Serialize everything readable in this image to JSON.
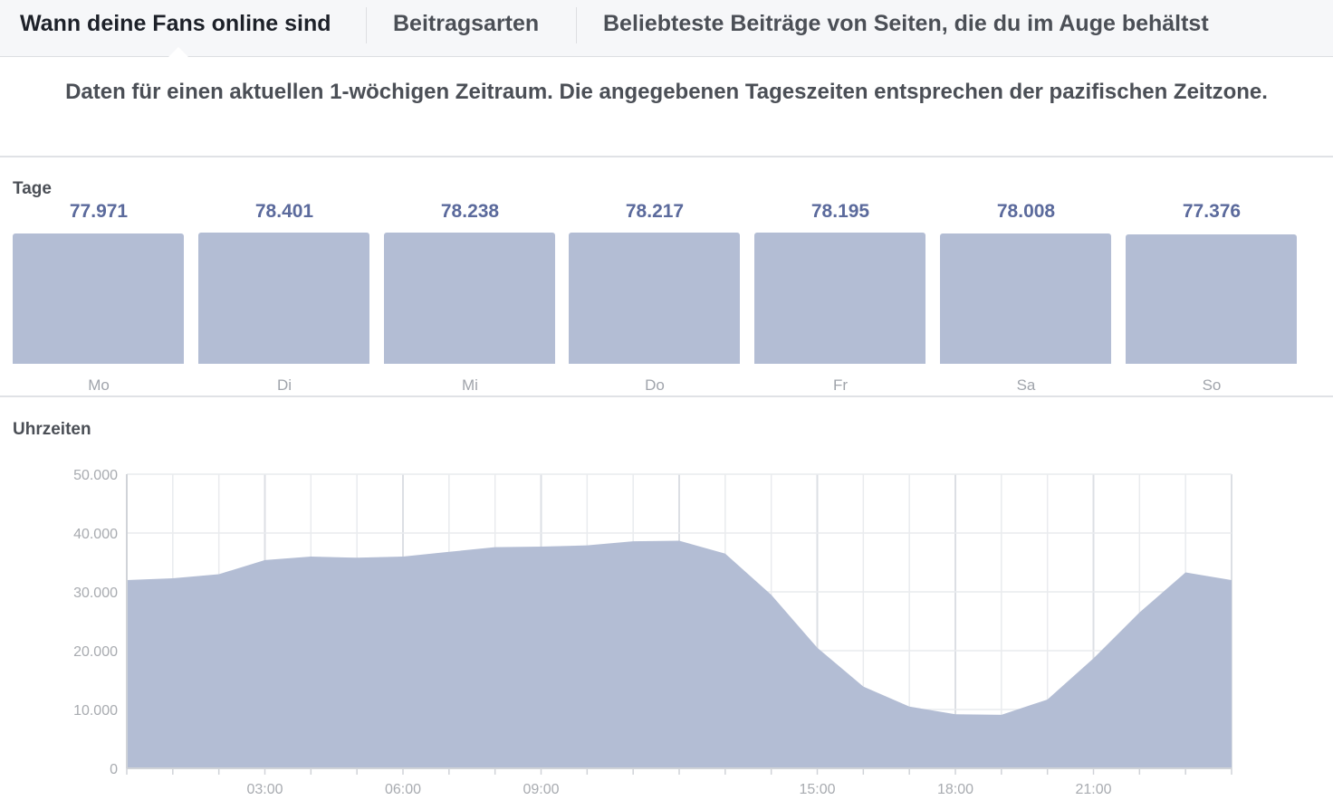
{
  "tabs": [
    {
      "label": "Wann deine Fans online sind",
      "active": true
    },
    {
      "label": "Beitragsarten",
      "active": false
    },
    {
      "label": "Beliebteste Beiträge von Seiten, die du im Auge behältst",
      "active": false
    }
  ],
  "note": "Daten für einen aktuellen 1-wöchigen Zeitraum. Die angegebenen Tageszeiten entsprechen der pazifischen Zeitzone.",
  "days_section": {
    "title": "Tage"
  },
  "hours_section": {
    "title": "Uhrzeiten"
  },
  "colors": {
    "bar_fill": "#b3bdd4",
    "value_text": "#5b6a9c",
    "grid": "#e9ebee"
  },
  "chart_data": [
    {
      "type": "bar",
      "title": "Tage",
      "categories": [
        "Mo",
        "Di",
        "Mi",
        "Do",
        "Fr",
        "Sa",
        "So"
      ],
      "values": [
        77971,
        78401,
        78238,
        78217,
        78195,
        78008,
        77376
      ],
      "value_labels": [
        "77.971",
        "78.401",
        "78.238",
        "78.217",
        "78.195",
        "78.008",
        "77.376"
      ]
    },
    {
      "type": "area",
      "title": "Uhrzeiten",
      "x": [
        0,
        1,
        2,
        3,
        4,
        5,
        6,
        7,
        8,
        9,
        10,
        11,
        12,
        13,
        14,
        15,
        16,
        17,
        18,
        19,
        20,
        21,
        22,
        23,
        24
      ],
      "values": [
        32000,
        32300,
        33000,
        35400,
        36000,
        35800,
        36000,
        36800,
        37600,
        37700,
        37900,
        38600,
        38700,
        36500,
        29500,
        20500,
        13900,
        10500,
        9200,
        9100,
        11700,
        18700,
        26500,
        33300,
        32000
      ],
      "ylim": [
        0,
        50000
      ],
      "y_ticks": [
        0,
        10000,
        20000,
        30000,
        40000,
        50000
      ],
      "y_tick_labels": [
        "0",
        "10.000",
        "20.000",
        "30.000",
        "40.000",
        "50.000"
      ],
      "x_ticks": [
        3,
        6,
        9,
        15,
        18,
        21
      ],
      "x_tick_labels": [
        "03:00",
        "06:00",
        "09:00",
        "15:00",
        "18:00",
        "21:00"
      ],
      "grid": true
    }
  ]
}
